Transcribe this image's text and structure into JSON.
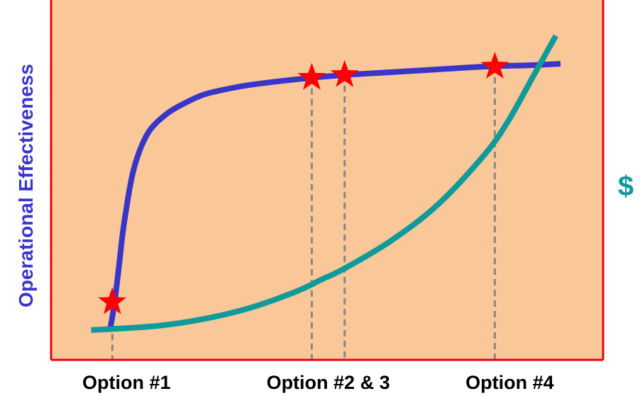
{
  "chart_data": {
    "type": "line",
    "title": "",
    "ylabel": "Operational Effectiveness",
    "y2label": "$",
    "tick_labels": [
      "Option #1",
      "Option #2 & 3",
      "Option #4"
    ],
    "xlim": [
      0,
      100
    ],
    "ylim": [
      0,
      100
    ],
    "grid": false,
    "series": [
      {
        "color": "#3a35c9",
        "x": [
          0,
          1,
          2,
          3,
          5,
          8,
          12,
          16,
          20,
          25,
          30,
          40,
          50,
          60,
          70,
          80,
          90,
          96
        ],
        "y": [
          0,
          10,
          24,
          38,
          57,
          70,
          77,
          81,
          84,
          86,
          87.5,
          89.5,
          91,
          92,
          93,
          94,
          94.5,
          95
        ]
      },
      {
        "color": "#0f9a9b",
        "x": [
          -4,
          10,
          20,
          30,
          40,
          45,
          50,
          60,
          70,
          80,
          85,
          90,
          95
        ],
        "y": [
          0,
          1.5,
          4,
          8,
          14,
          18,
          22,
          32,
          45,
          63,
          75,
          90,
          105
        ]
      }
    ],
    "markers": [
      {
        "x": 0.5,
        "y": 10
      },
      {
        "x": 43,
        "y": 90
      },
      {
        "x": 50,
        "y": 91
      },
      {
        "x": 82,
        "y": 94
      }
    ],
    "dashed_lines_x": [
      0.5,
      43,
      50,
      82
    ],
    "colors": {
      "plot_background": "#fac898",
      "axis": "#e8000e",
      "marker": "#ff0000",
      "dashed": "#888888",
      "ylabel": "#3a35c9",
      "y2label": "#0f9a9b"
    }
  }
}
